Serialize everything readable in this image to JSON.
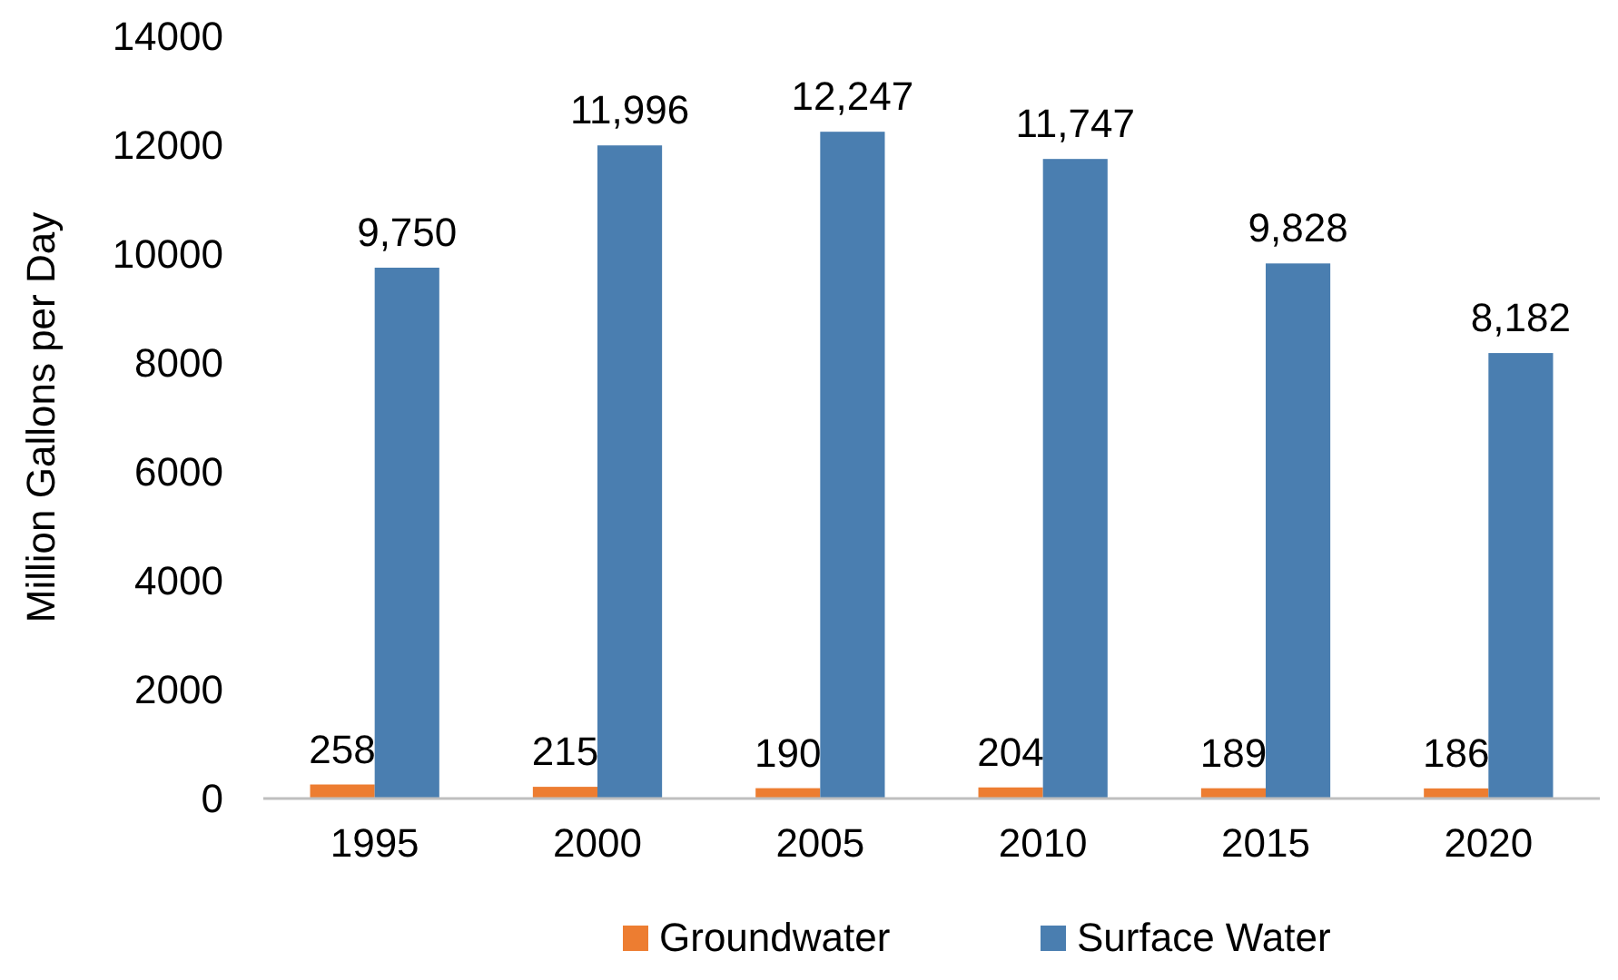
{
  "chart_data": {
    "type": "bar",
    "ylabel": "Million Gallons per Day",
    "categories": [
      "1995",
      "2000",
      "2005",
      "2010",
      "2015",
      "2020"
    ],
    "series": [
      {
        "name": "Groundwater",
        "color": "#ed7d31",
        "values": [
          258,
          215,
          190,
          204,
          189,
          186
        ],
        "value_labels": [
          "258",
          "215",
          "190",
          "204",
          "189",
          "186"
        ]
      },
      {
        "name": "Surface Water",
        "color": "#4a7eb0",
        "values": [
          9750,
          11996,
          12247,
          11747,
          9828,
          8182
        ],
        "value_labels": [
          "9,750",
          "11,996",
          "12,247",
          "11,747",
          "9,828",
          "8,182"
        ]
      }
    ],
    "ylim": [
      0,
      14000
    ],
    "yticks": [
      0,
      2000,
      4000,
      6000,
      8000,
      10000,
      12000,
      14000
    ],
    "grid": false,
    "legend": "bottom"
  }
}
